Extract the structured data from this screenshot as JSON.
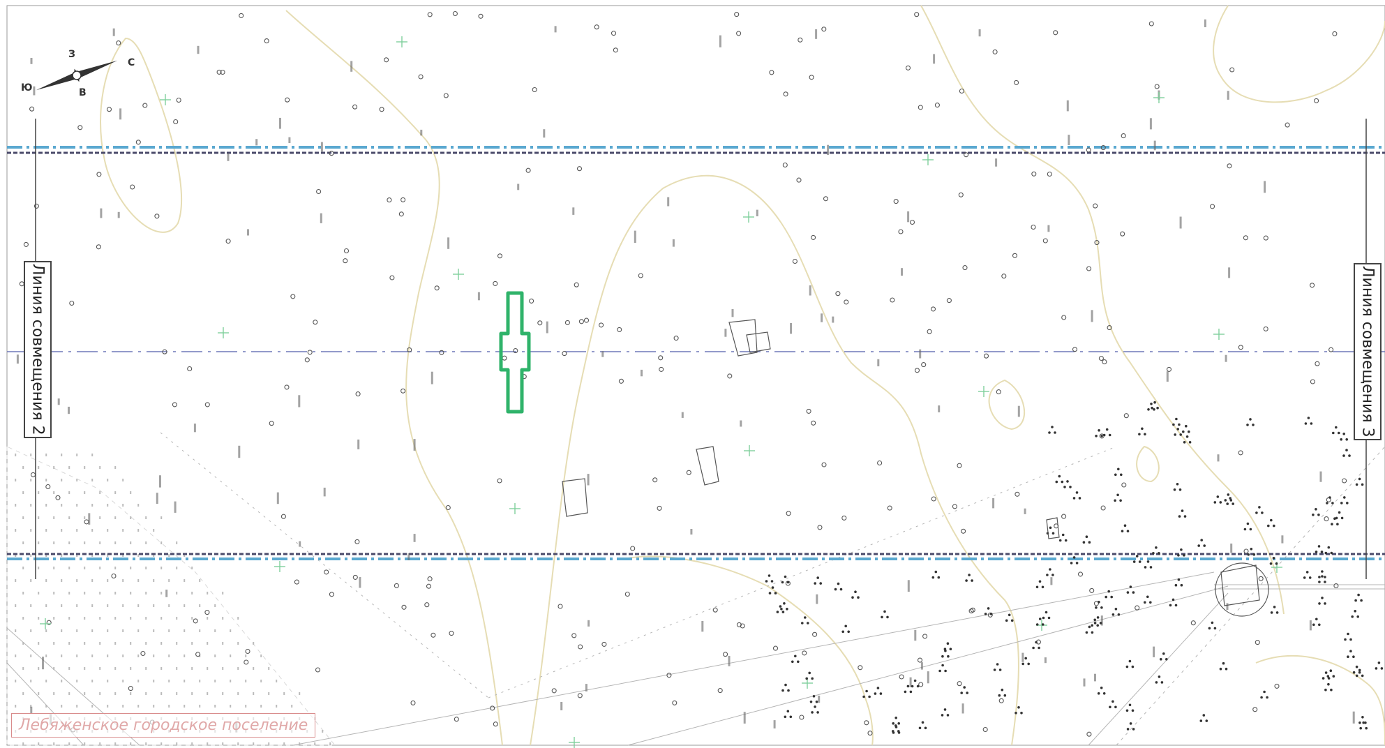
{
  "map": {
    "labels": {
      "combine_line_left": "Линия совмещения 2",
      "combine_line_right": "Линия совмещения 3",
      "settlement": "Лебяженское городское поселение"
    },
    "compass": {
      "north": "С",
      "south": "Ю",
      "east": "В",
      "west": "З"
    },
    "colors": {
      "corridor_dashdot": "#5aa8d0",
      "corridor_dark": "#4a4a6a",
      "axis_line": "#6f78b8",
      "contour": "#e6ddb4",
      "marker": "#2fb36a",
      "grid_cross": "#7fcf9c",
      "symbol": "#333333",
      "settlement_frame": "#d98c8c"
    },
    "icons": {
      "compass": "compass-rose-icon",
      "location": "location-marker-icon",
      "grid": "grid-cross-icon",
      "tree": "tree-symbol-icon"
    }
  }
}
